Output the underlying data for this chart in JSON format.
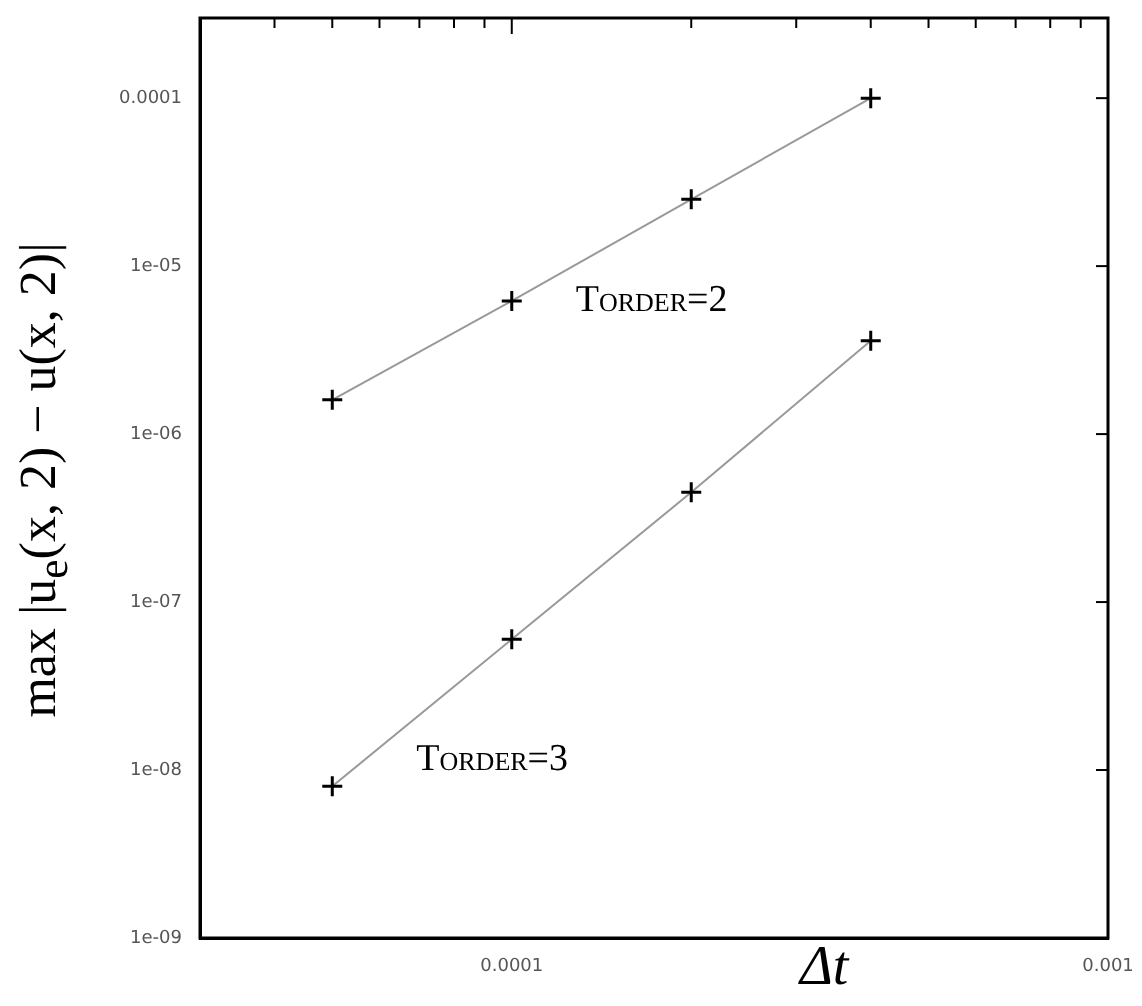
{
  "chart_data": {
    "type": "line",
    "xlabel": "Δt",
    "ylabel": "max |u$_{e}$(x, 2) − u(x, 2)|",
    "log": "xy",
    "x": [
      5e-05,
      0.0001,
      0.0002,
      0.0004
    ],
    "series": [
      {
        "name": "Torder=2",
        "color": "#999999",
        "values": [
          1.6e-06,
          6.2e-06,
          2.5e-05,
          0.0001
        ]
      },
      {
        "name": "Torder=3",
        "color": "#999999",
        "values": [
          8e-09,
          6e-08,
          4.5e-07,
          3.6e-06
        ]
      }
    ],
    "marker": "cross",
    "line_style": "solid",
    "grid": false,
    "legend": false,
    "xlim": [
      3e-05,
      0.001
    ],
    "xticks": [
      {
        "value": 4e-05,
        "label": null
      },
      {
        "value": 5e-05,
        "label": null
      },
      {
        "value": 6e-05,
        "label": null
      },
      {
        "value": 7e-05,
        "label": null
      },
      {
        "value": 8e-05,
        "label": null
      },
      {
        "value": 9e-05,
        "label": null
      },
      0.0001,
      {
        "value": 0.0002,
        "label": null
      },
      {
        "value": 0.0003,
        "label": null
      },
      {
        "value": 0.0004,
        "label": null
      },
      {
        "value": 0.0005,
        "label": null
      },
      {
        "value": 0.0006,
        "label": null
      },
      {
        "value": 0.0007,
        "label": null
      },
      {
        "value": 0.0008,
        "label": null
      },
      {
        "value": 0.0009,
        "label": null
      },
      0.001
    ],
    "ylim": [
      1e-09,
      0.0003
    ],
    "yticks": [
      {
        "value": 1e-09,
        "label": "1e-09"
      },
      {
        "value": 1e-08,
        "label": "1e-08"
      },
      {
        "value": 1e-07,
        "label": "1e-07"
      },
      {
        "value": 1e-06,
        "label": "1e-06"
      },
      {
        "value": 1e-05,
        "label": "1e-05"
      },
      0.0001
    ]
  }
}
